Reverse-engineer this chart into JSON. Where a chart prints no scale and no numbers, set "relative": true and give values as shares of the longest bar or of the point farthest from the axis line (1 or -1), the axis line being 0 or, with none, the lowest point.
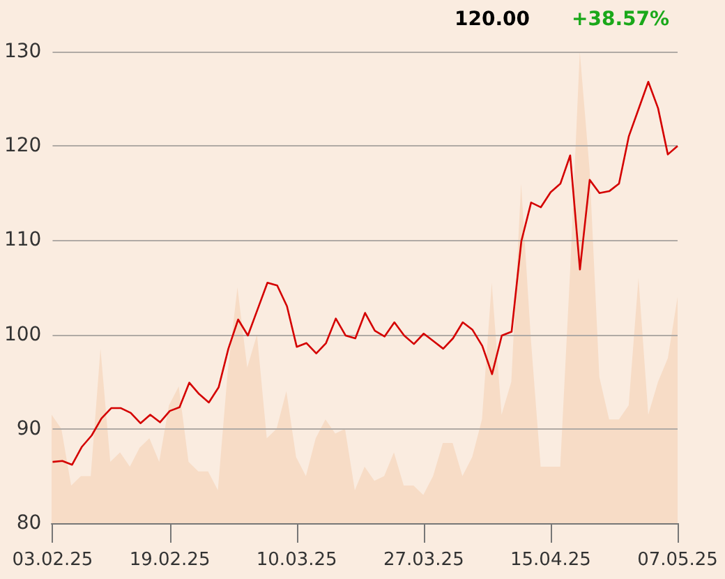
{
  "chart_data": [
    {
      "type": "area",
      "relative": true,
      "color": "#f7dcc6",
      "categories": [
        null,
        null,
        null,
        null,
        null,
        null,
        null,
        null,
        null,
        null,
        null,
        null,
        null,
        null,
        null,
        null,
        null,
        null,
        null,
        null,
        null,
        null,
        null,
        null,
        null,
        null,
        null,
        null,
        null,
        null,
        null,
        null,
        null,
        null,
        null,
        null,
        null,
        null,
        null,
        null,
        null,
        null,
        null,
        null,
        null,
        null,
        null,
        null,
        null,
        null,
        null,
        null,
        null,
        null,
        null,
        null,
        null,
        null,
        null,
        null,
        null,
        null,
        null,
        null,
        null
      ],
      "values": [
        0.23,
        0.2,
        0.08,
        0.1,
        0.1,
        0.37,
        0.13,
        0.15,
        0.12,
        0.16,
        0.18,
        0.13,
        0.25,
        0.29,
        0.13,
        0.11,
        0.11,
        0.07,
        0.32,
        0.5,
        0.33,
        0.4,
        0.18,
        0.2,
        0.28,
        0.14,
        0.1,
        0.18,
        0.22,
        0.19,
        0.2,
        0.07,
        0.12,
        0.09,
        0.1,
        0.15,
        0.08,
        0.08,
        0.06,
        0.1,
        0.17,
        0.17,
        0.1,
        0.14,
        0.22,
        0.51,
        0.23,
        0.3,
        0.72,
        0.39,
        0.12,
        0.12,
        0.12,
        0.53,
        1,
        0.75,
        0.31,
        0.22,
        0.22,
        0.25,
        0.52,
        0.23,
        0.3,
        0.35,
        0.48
      ]
    },
    {
      "type": "line",
      "color": "#d40000",
      "annotations": [
        "120.00",
        "+38.57%"
      ],
      "categories": [
        "03.02.25",
        null,
        null,
        null,
        null,
        null,
        null,
        null,
        null,
        null,
        null,
        null,
        "19.02.25",
        null,
        null,
        null,
        null,
        null,
        null,
        null,
        null,
        null,
        null,
        null,
        null,
        "10.03.25",
        null,
        null,
        null,
        null,
        null,
        null,
        null,
        null,
        null,
        null,
        null,
        null,
        "27.03.25",
        null,
        null,
        null,
        null,
        null,
        null,
        null,
        null,
        null,
        null,
        null,
        null,
        "15.04.25",
        null,
        null,
        null,
        null,
        null,
        null,
        null,
        null,
        null,
        null,
        null,
        null,
        "07.05.25"
      ],
      "values": [
        86.5,
        86.6,
        86.2,
        88.1,
        89.3,
        91.1,
        92.2,
        92.2,
        91.7,
        90.6,
        91.5,
        90.7,
        91.9,
        92.3,
        94.9,
        93.7,
        92.8,
        94.4,
        98.5,
        101.6,
        99.9,
        102.7,
        105.5,
        105.2,
        103.0,
        98.7,
        99.1,
        98.0,
        99.1,
        101.7,
        99.9,
        99.6,
        102.3,
        100.4,
        99.8,
        101.3,
        99.9,
        99.0,
        100.1,
        99.3,
        98.5,
        99.6,
        101.3,
        100.5,
        98.8,
        95.8,
        99.9,
        100.3,
        109.9,
        114.0,
        113.5,
        115.1,
        116.0,
        119.0,
        106.9,
        116.4,
        115.0,
        115.2,
        116.0,
        121.0,
        123.9,
        126.8,
        124.0,
        119.1,
        120.0
      ],
      "ylim": [
        80,
        130
      ],
      "yticks": [
        80,
        90,
        100,
        110,
        120,
        130
      ],
      "grid": "y",
      "marker": "none",
      "line_style": "solid"
    }
  ]
}
